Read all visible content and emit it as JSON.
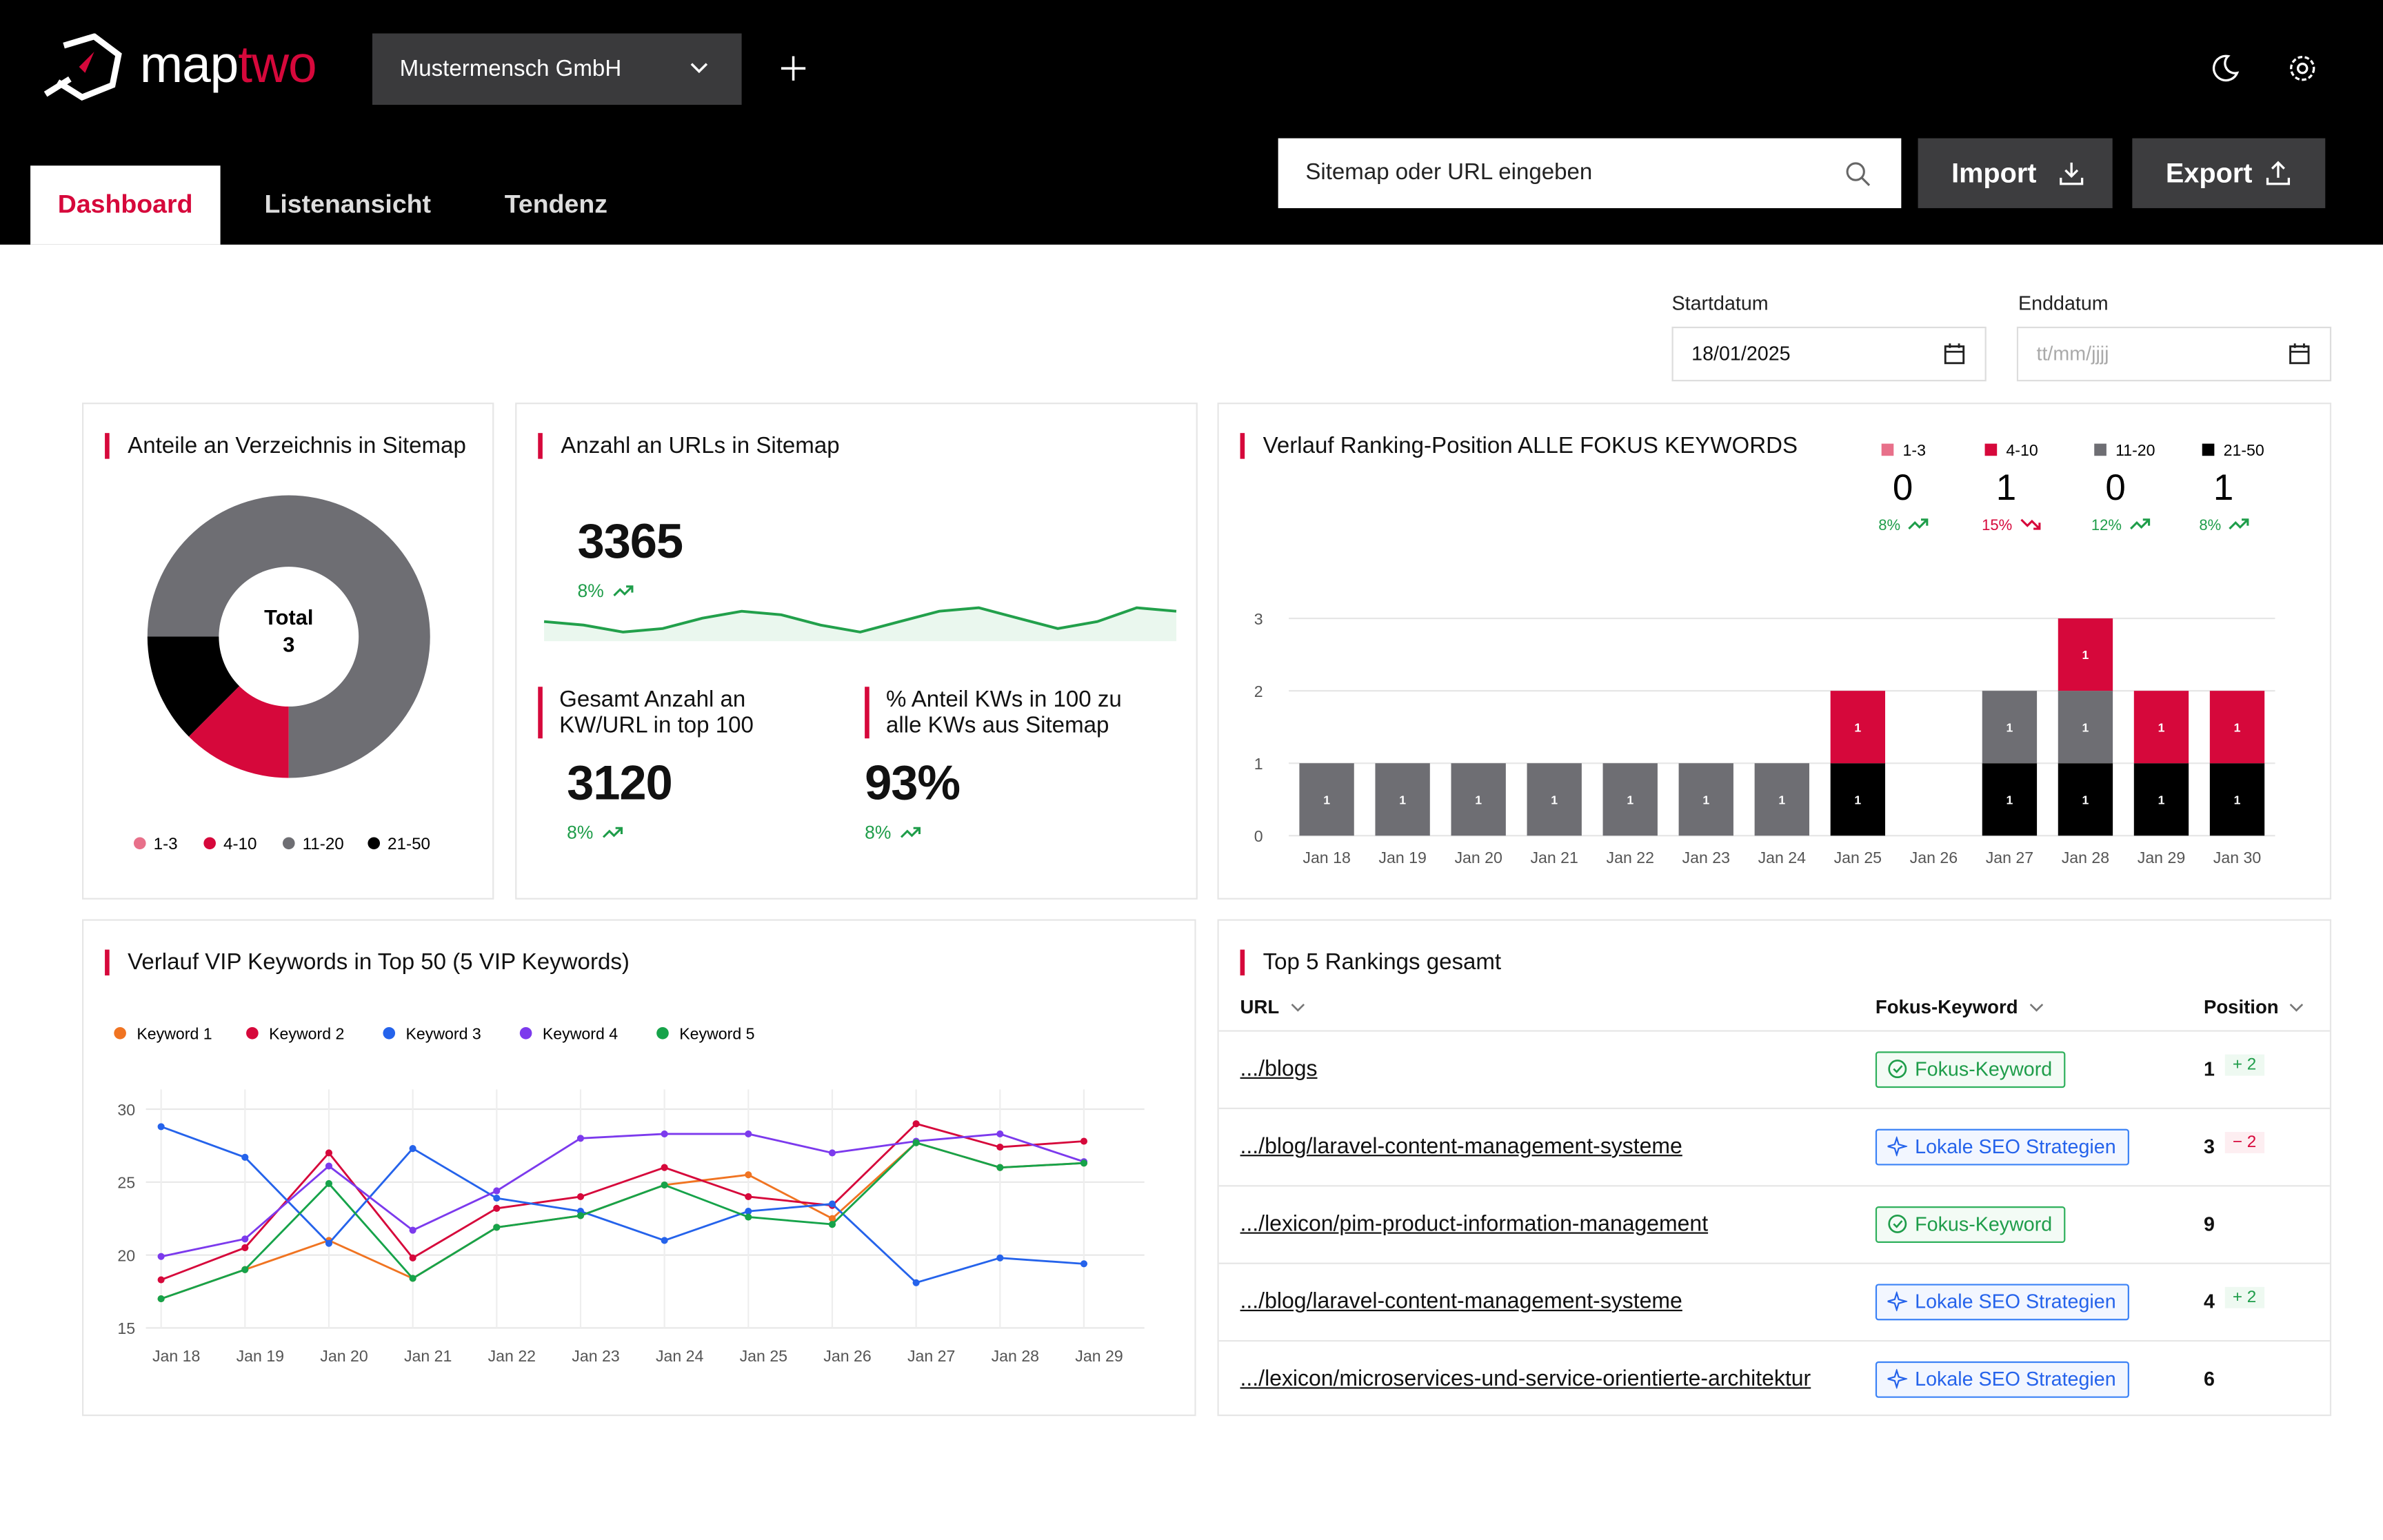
{
  "header": {
    "logo": [
      "map",
      "two"
    ],
    "company": "Mustermensch GmbH",
    "tabs": [
      "Dashboard",
      "Listenansicht",
      "Tendenz"
    ],
    "search_placeholder": "Sitemap oder URL eingeben",
    "import": "Import",
    "export": "Export"
  },
  "filters": {
    "start_label": "Startdatum",
    "start_value": "18/01/2025",
    "end_label": "Enddatum",
    "end_placeholder": "tt/mm/jjjj"
  },
  "kpis": {
    "title": "Anzahl an URLs in Sitemap",
    "value": 3365,
    "change": "8%",
    "trend": "up",
    "sparkline": [
      5,
      4,
      2,
      3,
      6,
      8,
      7,
      4,
      2,
      5,
      8,
      9,
      6,
      3,
      5,
      9,
      8
    ],
    "sub": [
      {
        "title": "Gesamt Anzahl an KW/URL in top 100",
        "value": 3120,
        "change": "8%",
        "trend": "up"
      },
      {
        "title": "% Anteil KWs in 100 zu alle KWs aus Sitemap",
        "value": "93%",
        "change": "8%",
        "trend": "up"
      }
    ]
  },
  "chart_data": [
    {
      "type": "pie",
      "donut": true,
      "title": "Anteile an Verzeichnis in Sitemap",
      "center_label": "Total",
      "center_value": 3,
      "categories": [
        "1-3",
        "4-10",
        "11-20",
        "21-50"
      ],
      "values": [
        0,
        12.5,
        75,
        12.5
      ],
      "colors": [
        "#e8708a",
        "#d6083b",
        "#6e6e73",
        "#000000"
      ]
    },
    {
      "type": "bar",
      "stacked": true,
      "title": "Verlauf Ranking-Position ALLE FOKUS KEYWORDS",
      "categories": [
        "Jan 18",
        "Jan 19",
        "Jan 20",
        "Jan 21",
        "Jan 22",
        "Jan 23",
        "Jan 24",
        "Jan 25",
        "Jan 26",
        "Jan 27",
        "Jan 28",
        "Jan 29",
        "Jan 30"
      ],
      "series": [
        {
          "name": "1-3",
          "color": "#e8708a",
          "values": [
            0,
            0,
            0,
            0,
            0,
            0,
            0,
            0,
            0,
            0,
            0,
            0,
            0
          ],
          "current": 0,
          "change": "8%",
          "trend": "up"
        },
        {
          "name": "4-10",
          "color": "#d6083b",
          "values": [
            0,
            0,
            0,
            0,
            0,
            0,
            0,
            1,
            0,
            0,
            1,
            1,
            1
          ],
          "current": 1,
          "change": "15%",
          "trend": "down"
        },
        {
          "name": "11-20",
          "color": "#6e6e73",
          "values": [
            1,
            1,
            1,
            1,
            1,
            1,
            1,
            0,
            0,
            1,
            1,
            0,
            0
          ],
          "current": 0,
          "change": "12%",
          "trend": "up"
        },
        {
          "name": "21-50",
          "color": "#000000",
          "values": [
            0,
            0,
            0,
            0,
            0,
            0,
            0,
            1,
            0,
            1,
            1,
            1,
            1
          ],
          "current": 1,
          "change": "8%",
          "trend": "up"
        }
      ],
      "ylim": [
        0,
        3
      ],
      "yticks": [
        0,
        1,
        2,
        3
      ],
      "grid": true
    },
    {
      "type": "line",
      "title": "Verlauf VIP Keywords in Top 50 (5 VIP Keywords)",
      "categories": [
        "Jan 18",
        "Jan 19",
        "Jan 20",
        "Jan 21",
        "Jan 22",
        "Jan 23",
        "Jan 24",
        "Jan 25",
        "Jan 26",
        "Jan 27",
        "Jan 28",
        "Jan 29"
      ],
      "series": [
        {
          "name": "Keyword 1",
          "color": "#f07422",
          "values": [
            17,
            19,
            21,
            18.4,
            21.9,
            22.7,
            24.8,
            25.5,
            22.5,
            27.7,
            26,
            26.3
          ]
        },
        {
          "name": "Keyword 2",
          "color": "#d6083b",
          "values": [
            18.3,
            20.5,
            27,
            19.8,
            23.2,
            24,
            26,
            24,
            23.4,
            29,
            27.4,
            27.8
          ]
        },
        {
          "name": "Keyword 3",
          "color": "#2563eb",
          "values": [
            28.8,
            26.7,
            20.8,
            27.3,
            23.9,
            23,
            21,
            23,
            23.5,
            18.1,
            19.8,
            19.4
          ]
        },
        {
          "name": "Keyword 4",
          "color": "#7c3aed",
          "values": [
            19.9,
            21.1,
            26.1,
            21.7,
            24.4,
            28,
            28.3,
            28.3,
            27,
            27.8,
            28.3,
            26.4
          ]
        },
        {
          "name": "Keyword 5",
          "color": "#16a34a",
          "values": [
            17,
            19,
            24.9,
            18.4,
            21.9,
            22.7,
            24.8,
            22.6,
            22.1,
            27.7,
            26,
            26.3
          ]
        }
      ],
      "ylim": [
        15,
        30
      ],
      "yticks": [
        15,
        20,
        25,
        30
      ],
      "grid": true
    }
  ],
  "table": {
    "title": "Top 5 Rankings gesamt",
    "columns": [
      "URL",
      "Fokus-Keyword",
      "Position"
    ],
    "rows": [
      {
        "url": ".../blogs",
        "keyword": "Fokus-Keyword",
        "kind": "focus",
        "position": 1,
        "change": "+ 2",
        "dir": "up"
      },
      {
        "url": ".../blog/laravel-content-management-systeme",
        "keyword": "Lokale SEO Strategien",
        "kind": "seo",
        "position": 3,
        "change": "− 2",
        "dir": "down"
      },
      {
        "url": ".../lexicon/pim-product-information-management",
        "keyword": "Fokus-Keyword",
        "kind": "focus",
        "position": 9
      },
      {
        "url": ".../blog/laravel-content-management-systeme",
        "keyword": "Lokale SEO Strategien",
        "kind": "seo",
        "position": 4,
        "change": "+ 2",
        "dir": "up"
      },
      {
        "url": ".../lexicon/microservices-und-service-orientierte-architektur",
        "keyword": "Lokale SEO Strategien",
        "kind": "seo",
        "position": 6
      }
    ]
  }
}
